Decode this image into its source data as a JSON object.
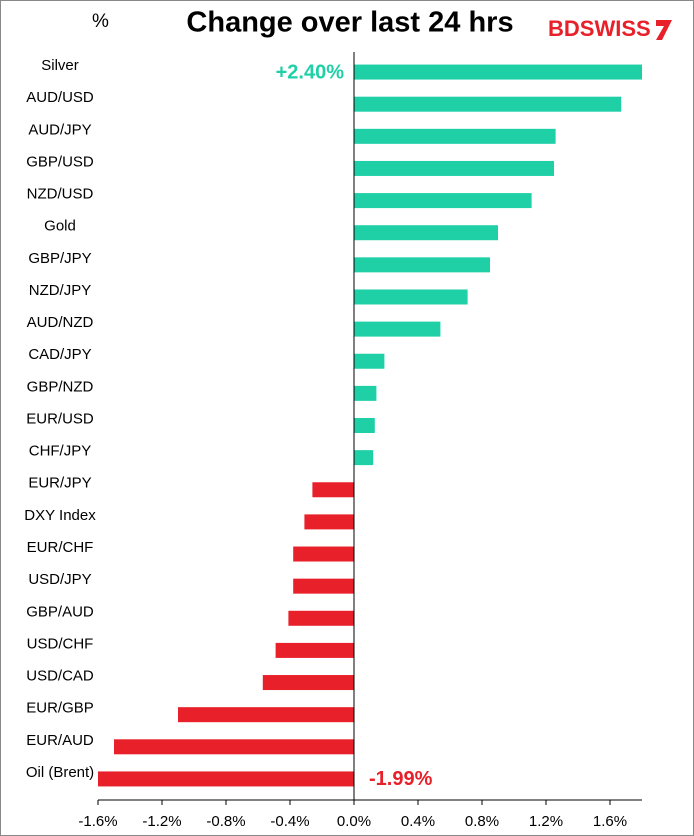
{
  "chart_data": {
    "type": "hbar",
    "title": "Change over last 24 hrs",
    "unit_label": "%",
    "logo": "BDSWISS",
    "categories": [
      "Silver",
      "AUD/USD",
      "AUD/JPY",
      "GBP/USD",
      "NZD/USD",
      "Gold",
      "GBP/JPY",
      "NZD/JPY",
      "AUD/NZD",
      "CAD/JPY",
      "GBP/NZD",
      "EUR/USD",
      "CHF/JPY",
      "EUR/JPY",
      "DXY Index",
      "EUR/CHF",
      "USD/JPY",
      "GBP/AUD",
      "USD/CHF",
      "USD/CAD",
      "EUR/GBP",
      "EUR/AUD",
      "Oil (Brent)"
    ],
    "values": [
      2.4,
      1.67,
      1.26,
      1.25,
      1.11,
      0.9,
      0.85,
      0.71,
      0.54,
      0.19,
      0.14,
      0.13,
      0.12,
      -0.26,
      -0.31,
      -0.38,
      -0.38,
      -0.41,
      -0.49,
      -0.57,
      -1.1,
      -1.5,
      -1.99
    ],
    "value_labels": [
      "+2.40%",
      null,
      null,
      null,
      null,
      null,
      null,
      null,
      null,
      null,
      null,
      null,
      null,
      null,
      null,
      null,
      null,
      null,
      null,
      null,
      null,
      null,
      "-1.99%"
    ],
    "positive_color": "#1fd0a7",
    "negative_color": "#e8202a",
    "xlim": [
      -1.6,
      1.8
    ],
    "xticks": [
      {
        "value": -1.6,
        "label": "-1.6%"
      },
      {
        "value": -1.2,
        "label": "-1.2%"
      },
      {
        "value": -0.8,
        "label": "-0.8%"
      },
      {
        "value": -0.4,
        "label": "-0.4%"
      },
      {
        "value": 0,
        "label": "0.0%"
      },
      {
        "value": 0.4,
        "label": "0.4%"
      },
      {
        "value": 0.8,
        "label": "0.8%"
      },
      {
        "value": 1.2,
        "label": "1.2%"
      },
      {
        "value": 1.6,
        "label": "1.6%"
      }
    ],
    "grid": false
  }
}
